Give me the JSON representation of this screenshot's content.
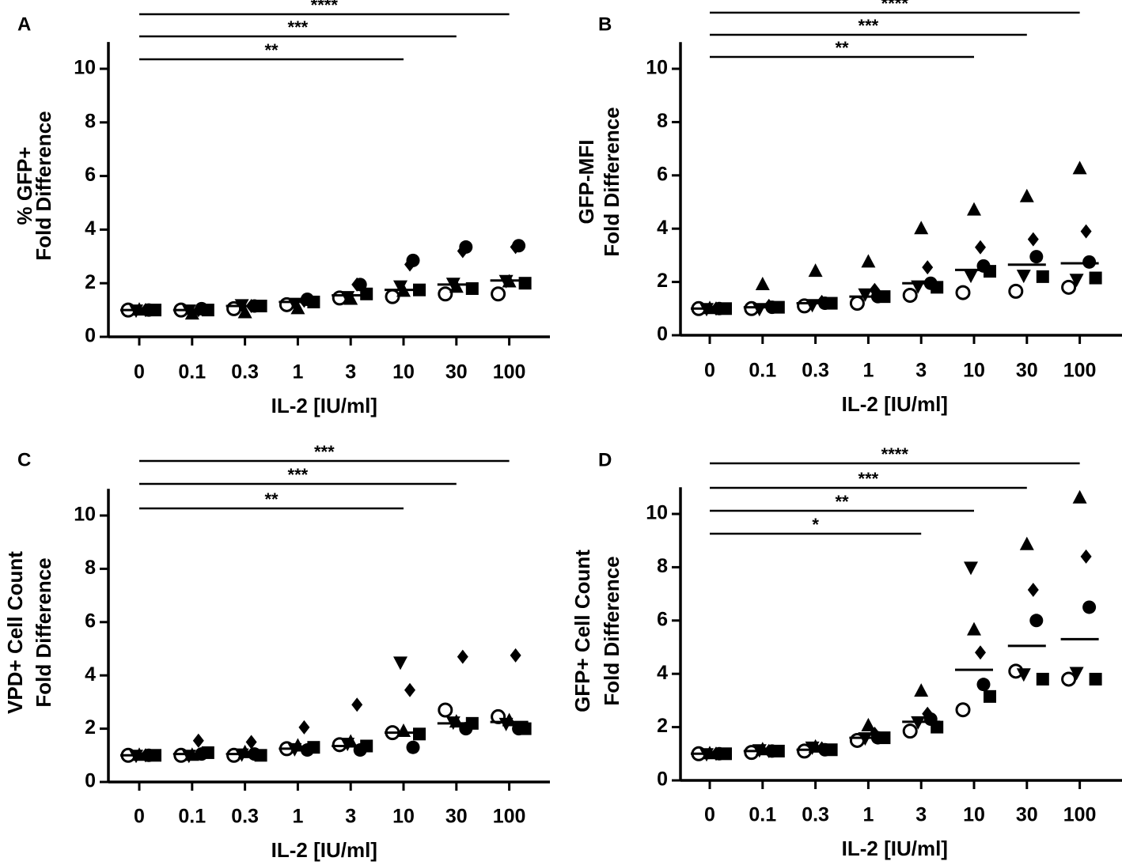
{
  "figure": {
    "x_categories": [
      "0",
      "0.1",
      "0.3",
      "1",
      "3",
      "10",
      "30",
      "100"
    ],
    "xlabel": "IL-2 [IU/ml]",
    "yticks": [
      "0",
      "2",
      "4",
      "6",
      "8",
      "10"
    ],
    "marker_keys": [
      "open-circle",
      "filled-circle",
      "square",
      "triangle-up",
      "triangle-down",
      "diamond"
    ]
  },
  "chart_data": [
    {
      "type": "scatter",
      "panel": "A",
      "ylabel_lines": [
        "% GFP+",
        "Fold Difference"
      ],
      "categories": [
        "0",
        "0.1",
        "0.3",
        "1",
        "3",
        "10",
        "30",
        "100"
      ],
      "ylim": [
        0,
        11
      ],
      "medians": [
        1.0,
        1.0,
        1.15,
        1.3,
        1.55,
        1.75,
        1.95,
        2.1
      ],
      "series": [
        {
          "name": "open-circle",
          "values": [
            1.0,
            1.0,
            1.05,
            1.2,
            1.45,
            1.5,
            1.6,
            1.6
          ]
        },
        {
          "name": "filled-circle",
          "values": [
            1.0,
            1.05,
            1.15,
            1.4,
            1.95,
            2.85,
            3.35,
            3.4
          ]
        },
        {
          "name": "square",
          "values": [
            1.0,
            1.0,
            1.15,
            1.3,
            1.6,
            1.75,
            1.8,
            2.0
          ]
        },
        {
          "name": "triangle-up",
          "values": [
            1.0,
            0.85,
            0.9,
            1.05,
            1.4,
            1.7,
            1.85,
            2.05
          ]
        },
        {
          "name": "triangle-down",
          "values": [
            1.0,
            1.0,
            1.2,
            1.25,
            1.5,
            1.9,
            2.0,
            2.1
          ]
        },
        {
          "name": "diamond",
          "values": [
            1.0,
            1.0,
            1.15,
            1.35,
            1.95,
            2.7,
            3.2,
            3.35
          ]
        }
      ],
      "significance": [
        {
          "to": "100",
          "label": "****"
        },
        {
          "to": "30",
          "label": "***"
        },
        {
          "to": "10",
          "label": "**"
        }
      ]
    },
    {
      "type": "scatter",
      "panel": "B",
      "ylabel_lines": [
        "GFP-MFI",
        "Fold Difference"
      ],
      "categories": [
        "0",
        "0.1",
        "0.3",
        "1",
        "3",
        "10",
        "30",
        "100"
      ],
      "ylim": [
        0,
        11
      ],
      "medians": [
        1.0,
        1.05,
        1.2,
        1.45,
        1.95,
        2.45,
        2.65,
        2.7
      ],
      "series": [
        {
          "name": "open-circle",
          "values": [
            1.0,
            1.0,
            1.1,
            1.2,
            1.5,
            1.6,
            1.65,
            1.8
          ]
        },
        {
          "name": "filled-circle",
          "values": [
            1.0,
            1.05,
            1.2,
            1.45,
            1.95,
            2.6,
            2.95,
            2.75
          ]
        },
        {
          "name": "square",
          "values": [
            1.0,
            1.05,
            1.2,
            1.45,
            1.8,
            2.4,
            2.2,
            2.15
          ]
        },
        {
          "name": "triangle-up",
          "values": [
            1.0,
            1.9,
            2.4,
            2.75,
            4.0,
            4.7,
            5.2,
            6.25
          ]
        },
        {
          "name": "triangle-down",
          "values": [
            1.0,
            1.0,
            1.15,
            1.55,
            1.85,
            2.25,
            2.25,
            2.1
          ]
        },
        {
          "name": "diamond",
          "values": [
            1.0,
            1.1,
            1.25,
            1.7,
            2.55,
            3.3,
            3.6,
            3.9
          ]
        }
      ],
      "significance": [
        {
          "to": "100",
          "label": "****"
        },
        {
          "to": "30",
          "label": "***"
        },
        {
          "to": "10",
          "label": "**"
        }
      ]
    },
    {
      "type": "scatter",
      "panel": "C",
      "ylabel_lines": [
        "VPD+ Cell Count",
        "Fold Difference"
      ],
      "categories": [
        "0",
        "0.1",
        "0.3",
        "1",
        "3",
        "10",
        "30",
        "100"
      ],
      "ylim": [
        0,
        11
      ],
      "medians": [
        1.0,
        1.05,
        1.05,
        1.25,
        1.35,
        1.85,
        2.2,
        2.25
      ],
      "series": [
        {
          "name": "open-circle",
          "values": [
            1.0,
            1.0,
            1.0,
            1.25,
            1.4,
            1.85,
            2.7,
            2.45
          ]
        },
        {
          "name": "filled-circle",
          "values": [
            1.0,
            1.05,
            1.05,
            1.2,
            1.2,
            1.3,
            2.0,
            2.0
          ]
        },
        {
          "name": "square",
          "values": [
            1.0,
            1.1,
            1.0,
            1.3,
            1.35,
            1.8,
            2.2,
            2.0
          ]
        },
        {
          "name": "triangle-up",
          "values": [
            1.0,
            1.0,
            1.1,
            1.35,
            1.5,
            1.9,
            2.25,
            2.3
          ]
        },
        {
          "name": "triangle-down",
          "values": [
            1.0,
            1.0,
            1.05,
            1.25,
            1.45,
            4.5,
            2.25,
            2.2
          ]
        },
        {
          "name": "diamond",
          "values": [
            1.0,
            1.55,
            1.5,
            2.05,
            2.9,
            3.45,
            4.7,
            4.75
          ]
        }
      ],
      "significance": [
        {
          "to": "100",
          "label": "***"
        },
        {
          "to": "30",
          "label": "***"
        },
        {
          "to": "10",
          "label": "**"
        }
      ]
    },
    {
      "type": "scatter",
      "panel": "D",
      "ylabel_lines": [
        "GFP+ Cell Count",
        "Fold Difference"
      ],
      "categories": [
        "0",
        "0.1",
        "0.3",
        "1",
        "3",
        "10",
        "30",
        "100"
      ],
      "ylim": [
        0,
        11
      ],
      "medians": [
        1.0,
        1.1,
        1.15,
        1.6,
        2.2,
        4.15,
        5.05,
        5.3
      ],
      "series": [
        {
          "name": "open-circle",
          "values": [
            1.0,
            1.05,
            1.1,
            1.5,
            1.85,
            2.65,
            4.1,
            3.8
          ]
        },
        {
          "name": "filled-circle",
          "values": [
            1.0,
            1.1,
            1.15,
            1.6,
            2.3,
            3.6,
            6.0,
            6.5
          ]
        },
        {
          "name": "square",
          "values": [
            1.0,
            1.1,
            1.15,
            1.6,
            2.0,
            3.15,
            3.8,
            3.8
          ]
        },
        {
          "name": "triangle-up",
          "values": [
            1.0,
            1.15,
            1.25,
            2.05,
            3.35,
            5.65,
            8.85,
            10.6
          ]
        },
        {
          "name": "triangle-down",
          "values": [
            1.0,
            1.15,
            1.25,
            1.6,
            2.2,
            8.0,
            4.0,
            4.05
          ]
        },
        {
          "name": "diamond",
          "values": [
            1.0,
            1.1,
            1.2,
            1.75,
            2.5,
            4.8,
            7.15,
            8.4
          ]
        }
      ],
      "significance": [
        {
          "to": "100",
          "label": "****"
        },
        {
          "to": "30",
          "label": "***"
        },
        {
          "to": "10",
          "label": "**"
        },
        {
          "to": "3",
          "label": "*"
        }
      ]
    }
  ]
}
